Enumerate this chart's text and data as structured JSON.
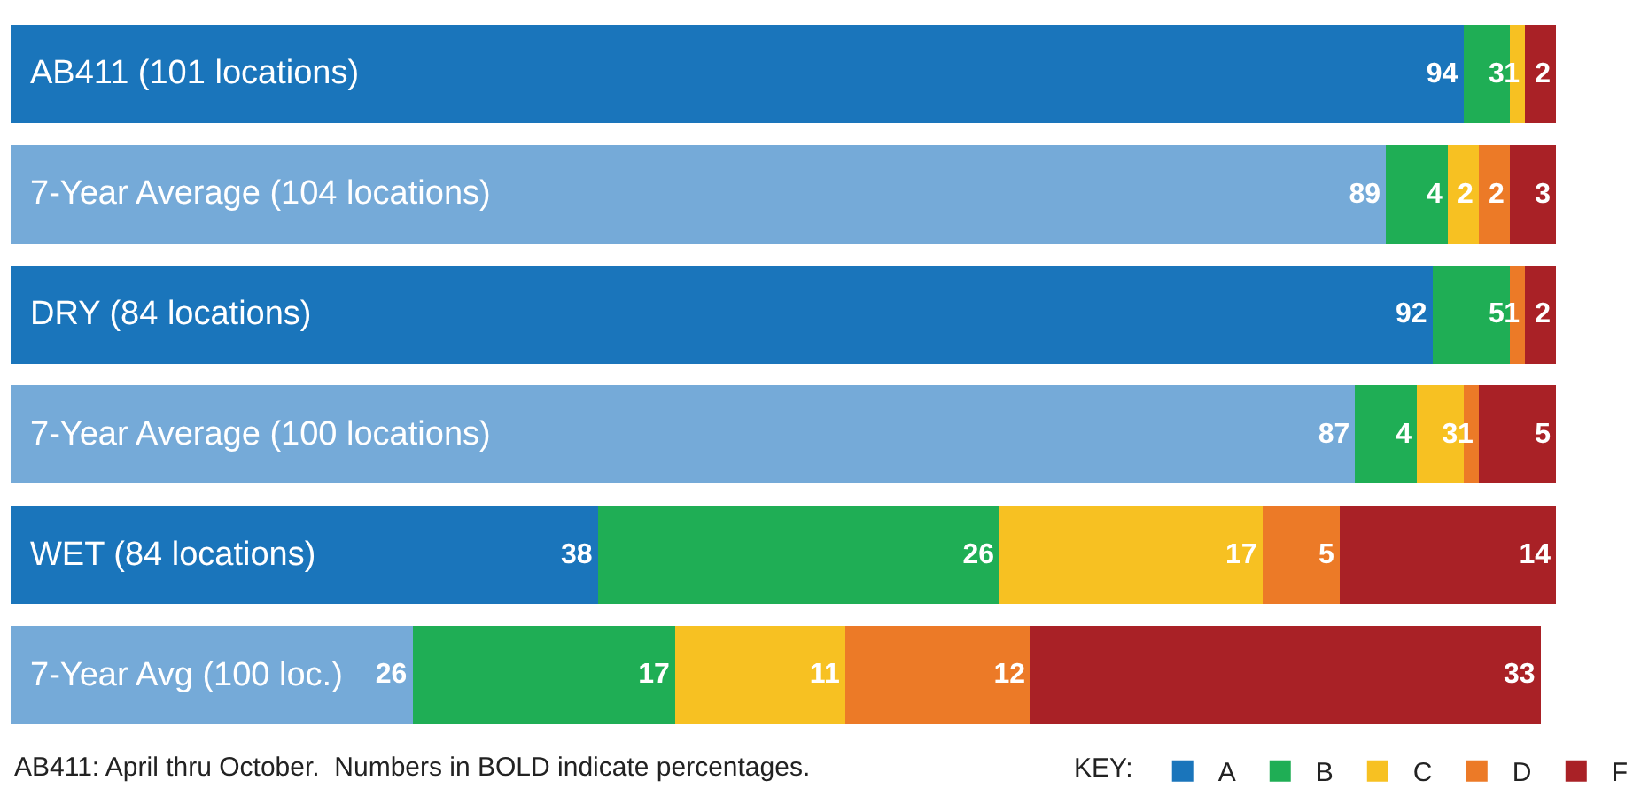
{
  "chart_data": {
    "type": "bar",
    "orientation": "horizontal",
    "stacked": true,
    "data_labels": true,
    "categories": [
      "AB411 (101 locations)",
      "7-Year Average (104 locations)",
      "DRY (84 locations)",
      "7-Year Average (100 locations)",
      "WET (84 locations)",
      "7-Year Avg (100 loc.)"
    ],
    "series": [
      {
        "name": "A",
        "colors": [
          "#1a75bb",
          "#75aad8",
          "#1a75bb",
          "#75aad8",
          "#1a75bb",
          "#75aad8"
        ],
        "values": [
          94,
          89,
          92,
          87,
          38,
          26
        ]
      },
      {
        "name": "B",
        "color": "#1fae55",
        "values": [
          3,
          4,
          5,
          4,
          26,
          17
        ]
      },
      {
        "name": "C",
        "color": "#f7c122",
        "values": [
          1,
          2,
          null,
          3,
          17,
          11
        ]
      },
      {
        "name": "D",
        "color": "#ec7a27",
        "values": [
          null,
          2,
          1,
          1,
          5,
          12
        ]
      },
      {
        "name": "F",
        "color": "#a92126",
        "values": [
          2,
          3,
          2,
          5,
          14,
          33
        ]
      }
    ],
    "legend": "bottom right",
    "legend_title": "KEY:",
    "annotations": [
      "AB411: April thru October.  Numbers in BOLD indicate percentages."
    ]
  }
}
